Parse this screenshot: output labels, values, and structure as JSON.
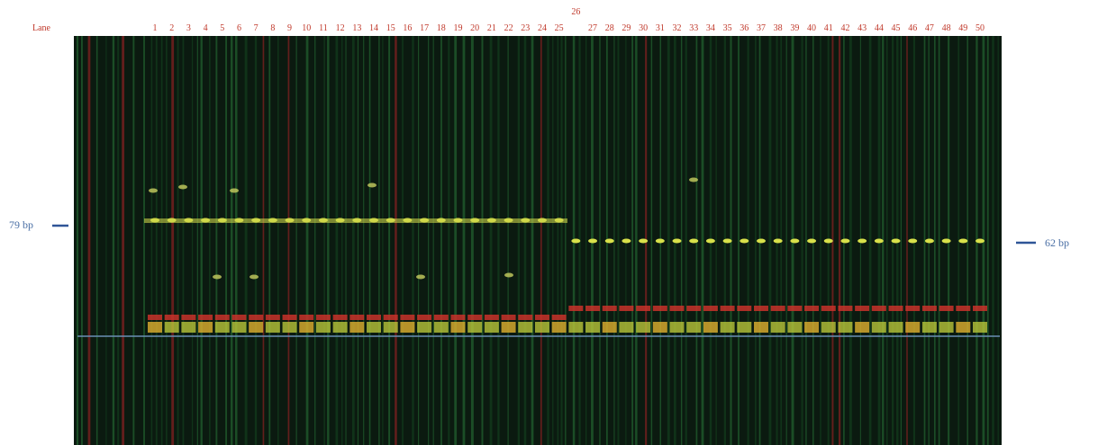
{
  "lane_label": "Lane",
  "lanes": [
    "1",
    "2",
    "3",
    "4",
    "5",
    "6",
    "7",
    "8",
    "9",
    "10",
    "11",
    "12",
    "13",
    "14",
    "15",
    "16",
    "17",
    "18",
    "19",
    "20",
    "21",
    "22",
    "23",
    "24",
    "25",
    "26",
    "27",
    "28",
    "29",
    "30",
    "31",
    "32",
    "33",
    "34",
    "35",
    "36",
    "37",
    "38",
    "39",
    "40",
    "41",
    "42",
    "43",
    "44",
    "45",
    "46",
    "47",
    "48",
    "49",
    "50"
  ],
  "markers": {
    "left": "79 bp",
    "right": "62 bp"
  }
}
